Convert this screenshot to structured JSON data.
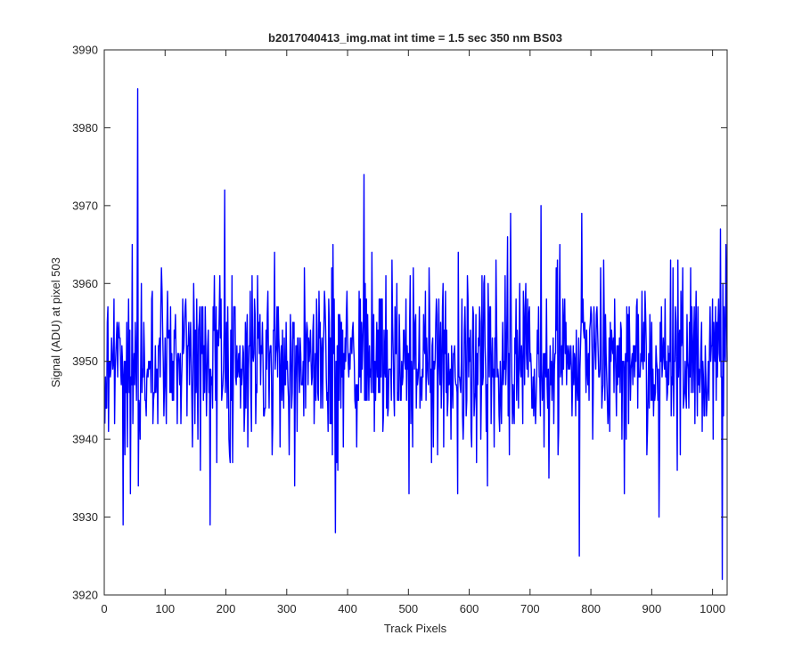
{
  "chart_data": {
    "type": "line",
    "title": "b2017040413_img.mat int time = 1.5 sec  350 nm BS03",
    "xlabel": "Track Pixels",
    "ylabel": "Signal (ADU) at pixel 503",
    "xlim": [
      0,
      1024
    ],
    "ylim": [
      3920,
      3990
    ],
    "xticks": [
      0,
      100,
      200,
      300,
      400,
      500,
      600,
      700,
      800,
      900,
      1000
    ],
    "yticks": [
      3920,
      3930,
      3940,
      3950,
      3960,
      3970,
      3980,
      3990
    ],
    "grid": false,
    "series_color": "#0000ff",
    "series": [
      {
        "name": "",
        "x_start": 1,
        "x_step": 1,
        "count": 1024,
        "mean": 3950,
        "approx_std": 5.5,
        "extrema": [
          {
            "x": 55,
            "y": 3985
          },
          {
            "x": 56,
            "y": 3934
          },
          {
            "x": 31,
            "y": 3929
          },
          {
            "x": 174,
            "y": 3929
          },
          {
            "x": 198,
            "y": 3972
          },
          {
            "x": 380,
            "y": 3928
          },
          {
            "x": 427,
            "y": 3974
          },
          {
            "x": 781,
            "y": 3925
          },
          {
            "x": 1016,
            "y": 3922
          },
          {
            "x": 1013,
            "y": 3967
          },
          {
            "x": 912,
            "y": 3930
          },
          {
            "x": 785,
            "y": 3969
          },
          {
            "x": 718,
            "y": 3970
          },
          {
            "x": 668,
            "y": 3969
          }
        ]
      }
    ]
  }
}
